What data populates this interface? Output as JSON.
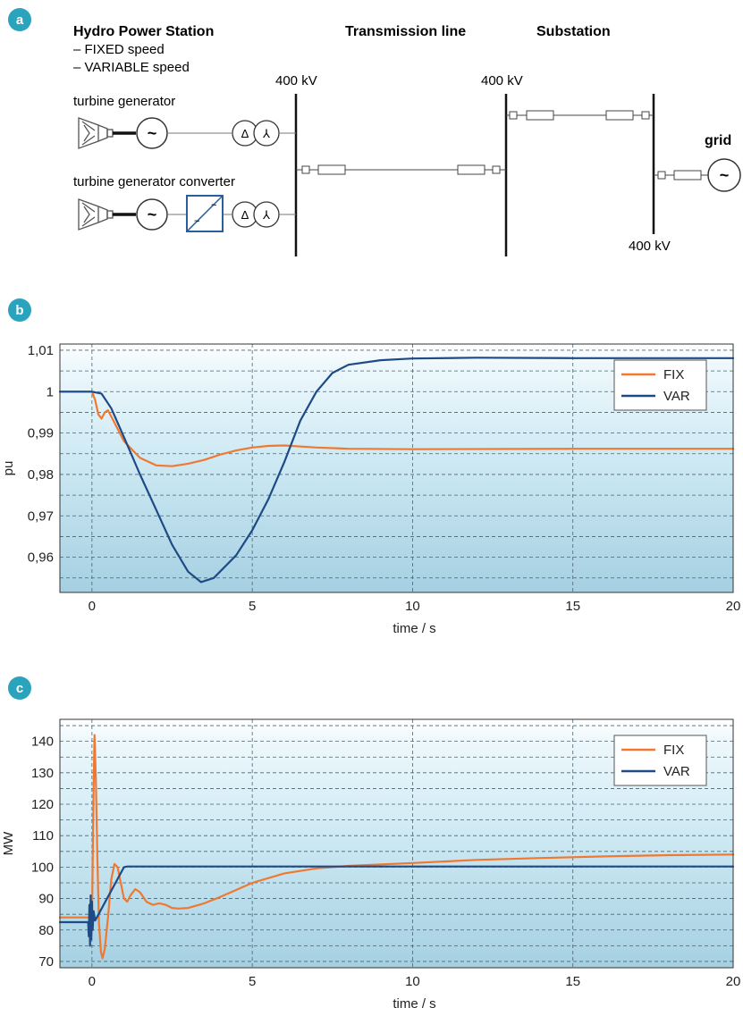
{
  "panel_a": {
    "badge": "a",
    "station_title": "Hydro Power Station",
    "station_sub1": "– FIXED speed",
    "station_sub2": "– VARIABLE speed",
    "transmission_title": "Transmission line",
    "substation_title": "Substation",
    "voltage_1": "400 kV",
    "voltage_2": "400 kV",
    "voltage_3": "400 kV",
    "label_fixed": "turbine generator",
    "label_var": "turbine generator converter",
    "grid_label": "grid",
    "generator_symbol": "~",
    "delta_symbol": "Δ",
    "wye_symbol": "⅄",
    "colors": {
      "converter": "#2a5d9b",
      "line": "#222222"
    }
  },
  "chart_data": [
    {
      "type": "line",
      "badge": "b",
      "xlabel": "time / s",
      "ylabel": "pu",
      "xlim": [
        -1,
        20
      ],
      "ylim": [
        0.9515,
        1.0115
      ],
      "x_ticks": [
        0,
        5,
        10,
        15,
        20
      ],
      "x_tick_labels": [
        "0",
        "5",
        "10",
        "15",
        "20"
      ],
      "y_ticks": [
        0.96,
        0.97,
        0.98,
        0.99,
        1.0,
        1.01
      ],
      "y_tick_labels": [
        "0,96",
        "0,97",
        "0,98",
        "0,99",
        "1",
        "1,01"
      ],
      "grid": true,
      "legend": "top-right",
      "series": [
        {
          "name": "FIX",
          "color": "#f07830",
          "points": [
            [
              -1,
              1.0
            ],
            [
              0,
              1.0
            ],
            [
              0.1,
              0.998
            ],
            [
              0.2,
              0.9945
            ],
            [
              0.3,
              0.9935
            ],
            [
              0.4,
              0.995
            ],
            [
              0.5,
              0.9955
            ],
            [
              0.7,
              0.9925
            ],
            [
              1.0,
              0.988
            ],
            [
              1.5,
              0.984
            ],
            [
              2.0,
              0.9822
            ],
            [
              2.5,
              0.982
            ],
            [
              3.0,
              0.9826
            ],
            [
              3.5,
              0.9835
            ],
            [
              4.0,
              0.9848
            ],
            [
              4.5,
              0.9858
            ],
            [
              5.0,
              0.9865
            ],
            [
              5.5,
              0.9869
            ],
            [
              6.0,
              0.987
            ],
            [
              7.0,
              0.9865
            ],
            [
              8.0,
              0.9862
            ],
            [
              10.0,
              0.9861
            ],
            [
              15.0,
              0.9862
            ],
            [
              20.0,
              0.9862
            ]
          ]
        },
        {
          "name": "VAR",
          "color": "#1e4a85",
          "points": [
            [
              -1,
              1.0
            ],
            [
              0,
              1.0
            ],
            [
              0.3,
              0.9995
            ],
            [
              0.6,
              0.996
            ],
            [
              1.0,
              0.989
            ],
            [
              1.5,
              0.98
            ],
            [
              2.0,
              0.9715
            ],
            [
              2.5,
              0.963
            ],
            [
              3.0,
              0.9565
            ],
            [
              3.4,
              0.954
            ],
            [
              3.8,
              0.955
            ],
            [
              4.5,
              0.9605
            ],
            [
              5.0,
              0.9665
            ],
            [
              5.5,
              0.974
            ],
            [
              6.0,
              0.983
            ],
            [
              6.5,
              0.993
            ],
            [
              7.0,
              1.0
            ],
            [
              7.5,
              1.0045
            ],
            [
              8.0,
              1.0065
            ],
            [
              9.0,
              1.0076
            ],
            [
              10.0,
              1.008
            ],
            [
              12.0,
              1.0082
            ],
            [
              15.0,
              1.0081
            ],
            [
              20.0,
              1.0081
            ]
          ]
        }
      ]
    },
    {
      "type": "line",
      "badge": "c",
      "xlabel": "time / s",
      "ylabel": "MW",
      "xlim": [
        -1,
        20
      ],
      "ylim": [
        68,
        147
      ],
      "x_ticks": [
        0,
        5,
        10,
        15,
        20
      ],
      "x_tick_labels": [
        "0",
        "5",
        "10",
        "15",
        "20"
      ],
      "y_ticks": [
        70,
        80,
        90,
        100,
        110,
        120,
        130,
        140
      ],
      "y_tick_labels": [
        "70",
        "80",
        "90",
        "100",
        "110",
        "120",
        "130",
        "140"
      ],
      "grid": true,
      "legend": "top-right",
      "series": [
        {
          "name": "FIX",
          "color": "#f07830",
          "points": [
            [
              -1,
              84
            ],
            [
              0,
              84
            ],
            [
              0.02,
              100
            ],
            [
              0.05,
              125
            ],
            [
              0.08,
              142
            ],
            [
              0.12,
              128
            ],
            [
              0.17,
              102
            ],
            [
              0.22,
              82
            ],
            [
              0.28,
              73
            ],
            [
              0.33,
              71
            ],
            [
              0.4,
              74
            ],
            [
              0.5,
              84
            ],
            [
              0.6,
              96
            ],
            [
              0.7,
              101
            ],
            [
              0.8,
              100
            ],
            [
              0.9,
              95
            ],
            [
              1.0,
              90
            ],
            [
              1.1,
              89
            ],
            [
              1.2,
              91
            ],
            [
              1.35,
              93
            ],
            [
              1.5,
              92
            ],
            [
              1.7,
              89
            ],
            [
              1.9,
              88
            ],
            [
              2.1,
              88.5
            ],
            [
              2.3,
              88
            ],
            [
              2.5,
              87
            ],
            [
              2.7,
              86.8
            ],
            [
              3.0,
              87
            ],
            [
              3.5,
              88.5
            ],
            [
              4.0,
              90.5
            ],
            [
              5.0,
              95
            ],
            [
              6.0,
              98
            ],
            [
              7.0,
              99.6
            ],
            [
              8.0,
              100.4
            ],
            [
              10.0,
              101.3
            ],
            [
              12.0,
              102.3
            ],
            [
              14.0,
              102.9
            ],
            [
              16.0,
              103.4
            ],
            [
              18.0,
              103.8
            ],
            [
              20.0,
              104
            ]
          ]
        },
        {
          "name": "VAR",
          "color": "#1e4a85",
          "points": [
            [
              -1,
              82.5
            ],
            [
              -0.12,
              82.5
            ],
            [
              -0.1,
              78
            ],
            [
              -0.08,
              88
            ],
            [
              -0.06,
              75
            ],
            [
              -0.04,
              91
            ],
            [
              -0.02,
              77
            ],
            [
              0,
              89
            ],
            [
              0.02,
              80
            ],
            [
              0.05,
              86
            ],
            [
              0.1,
              83
            ],
            [
              1.0,
              100
            ],
            [
              1.1,
              100.2
            ],
            [
              5.0,
              100.2
            ],
            [
              10.0,
              100.2
            ],
            [
              20.0,
              100.2
            ]
          ]
        }
      ]
    }
  ]
}
